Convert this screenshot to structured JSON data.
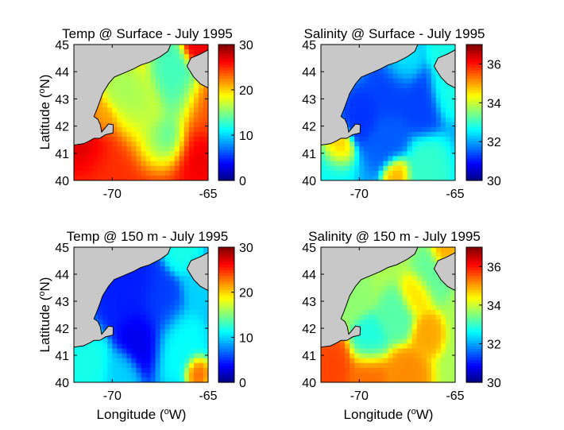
{
  "figure": {
    "x_axis_label": "Longitude",
    "x_axis_unit": "W",
    "y_axis_label": "Latitude",
    "y_axis_unit": "N",
    "degree_symbol": "o",
    "colors": {
      "land": "#c8c8c8",
      "coast": "#000000",
      "jet": [
        "#00008f",
        "#0000ff",
        "#00ffff",
        "#ffff00",
        "#ff0000",
        "#800000"
      ]
    }
  },
  "chart_data": [
    {
      "type": "heatmap",
      "title": "Temp @ Surface - July 1995",
      "variable": "temperature",
      "depth": "Surface",
      "xlim": [
        -72,
        -65
      ],
      "ylim": [
        40,
        45
      ],
      "xticks": [
        -70,
        -65
      ],
      "yticks": [
        40,
        41,
        42,
        43,
        44,
        45
      ],
      "colorbar": {
        "range": [
          0,
          30
        ],
        "ticks": [
          0,
          10,
          20,
          30
        ]
      },
      "base": 19,
      "features": [
        {
          "lon": -71.3,
          "lat": 41.2,
          "value": 28,
          "radius": 0.8
        },
        {
          "lon": -70.6,
          "lat": 40.6,
          "value": 25,
          "radius": 1.0
        },
        {
          "lon": -68.5,
          "lat": 40.3,
          "value": 25,
          "radius": 1.8
        },
        {
          "lon": -65.8,
          "lat": 40.9,
          "value": 27,
          "radius": 0.9
        },
        {
          "lon": -65.5,
          "lat": 42.5,
          "value": 24,
          "radius": 0.8
        },
        {
          "lon": -67.8,
          "lat": 41.3,
          "value": 12,
          "radius": 0.8
        },
        {
          "lon": -67.0,
          "lat": 41.5,
          "value": 11,
          "radius": 0.7
        },
        {
          "lon": -68.7,
          "lat": 42.4,
          "value": 15,
          "radius": 0.9
        },
        {
          "lon": -66.5,
          "lat": 43.0,
          "value": 13,
          "radius": 0.8
        },
        {
          "lon": -66.8,
          "lat": 44.0,
          "value": 13,
          "radius": 0.7
        },
        {
          "lon": -69.5,
          "lat": 43.3,
          "value": 16,
          "radius": 0.6
        },
        {
          "lon": -65.6,
          "lat": 44.9,
          "value": 27,
          "radius": 0.5
        },
        {
          "lon": -70.5,
          "lat": 42.2,
          "value": 21,
          "radius": 0.5
        }
      ]
    },
    {
      "type": "heatmap",
      "title": "Salinity @ Surface - July 1995",
      "variable": "salinity",
      "depth": "Surface",
      "xlim": [
        -72,
        -65
      ],
      "ylim": [
        40,
        45
      ],
      "xticks": [
        -70,
        -65
      ],
      "yticks": [
        40,
        41,
        42,
        43,
        44,
        45
      ],
      "colorbar": {
        "range": [
          30,
          37
        ],
        "ticks": [
          30,
          32,
          34,
          36
        ]
      },
      "base": 32.0,
      "features": [
        {
          "lon": -71.2,
          "lat": 41.1,
          "value": 35,
          "radius": 0.5
        },
        {
          "lon": -71.5,
          "lat": 40.4,
          "value": 32.7,
          "radius": 0.7
        },
        {
          "lon": -68.0,
          "lat": 40.2,
          "value": 35,
          "radius": 0.45
        },
        {
          "lon": -66.5,
          "lat": 40.3,
          "value": 33,
          "radius": 0.8
        },
        {
          "lon": -69.8,
          "lat": 42.4,
          "value": 31.2,
          "radius": 0.6
        },
        {
          "lon": -68.3,
          "lat": 43.3,
          "value": 31.3,
          "radius": 0.8
        },
        {
          "lon": -66.8,
          "lat": 42.8,
          "value": 31.3,
          "radius": 0.7
        },
        {
          "lon": -68.5,
          "lat": 41.5,
          "value": 31.5,
          "radius": 0.7
        },
        {
          "lon": -65.4,
          "lat": 43.3,
          "value": 32.8,
          "radius": 0.6
        },
        {
          "lon": -65.6,
          "lat": 44.8,
          "value": 32.8,
          "radius": 0.5
        },
        {
          "lon": -67.8,
          "lat": 44.3,
          "value": 32.5,
          "radius": 0.6
        }
      ]
    },
    {
      "type": "heatmap",
      "title": "Temp @ 150 m - July 1995",
      "variable": "temperature",
      "depth": "150 m",
      "xlim": [
        -72,
        -65
      ],
      "ylim": [
        40,
        45
      ],
      "xticks": [
        -70,
        -65
      ],
      "yticks": [
        40,
        41,
        42,
        43,
        44,
        45
      ],
      "colorbar": {
        "range": [
          0,
          30
        ],
        "ticks": [
          0,
          10,
          20,
          30
        ]
      },
      "base": 7,
      "features": [
        {
          "lon": -68.5,
          "lat": 41.6,
          "value": 3,
          "radius": 0.8
        },
        {
          "lon": -69.2,
          "lat": 43.3,
          "value": 4.5,
          "radius": 1.0
        },
        {
          "lon": -67.5,
          "lat": 42.8,
          "value": 5.5,
          "radius": 0.8
        },
        {
          "lon": -71.3,
          "lat": 40.7,
          "value": 12,
          "radius": 0.8
        },
        {
          "lon": -66.5,
          "lat": 41.4,
          "value": 11.5,
          "radius": 0.9
        },
        {
          "lon": -65.6,
          "lat": 40.4,
          "value": 24,
          "radius": 0.4
        },
        {
          "lon": -65.4,
          "lat": 43.5,
          "value": 10,
          "radius": 0.6
        },
        {
          "lon": -66.3,
          "lat": 44.9,
          "value": 12,
          "radius": 0.6
        },
        {
          "lon": -69.5,
          "lat": 40.3,
          "value": 10,
          "radius": 0.6
        }
      ]
    },
    {
      "type": "heatmap",
      "title": "Salinity @ 150 m - July 1995",
      "variable": "salinity",
      "depth": "150 m",
      "xlim": [
        -72,
        -65
      ],
      "ylim": [
        40,
        45
      ],
      "xticks": [
        -70,
        -65
      ],
      "yticks": [
        40,
        41,
        42,
        43,
        44,
        45
      ],
      "colorbar": {
        "range": [
          30,
          37
        ],
        "ticks": [
          30,
          32,
          34,
          36
        ]
      },
      "base": 33.8,
      "features": [
        {
          "lon": -71.5,
          "lat": 40.5,
          "value": 35.7,
          "radius": 0.8
        },
        {
          "lon": -69.5,
          "lat": 40.2,
          "value": 35.4,
          "radius": 0.7
        },
        {
          "lon": -67.5,
          "lat": 40.2,
          "value": 35.2,
          "radius": 0.7
        },
        {
          "lon": -69.5,
          "lat": 41.5,
          "value": 32.8,
          "radius": 0.6
        },
        {
          "lon": -68.0,
          "lat": 42.4,
          "value": 33.2,
          "radius": 0.6
        },
        {
          "lon": -66.5,
          "lat": 41.8,
          "value": 35,
          "radius": 0.5
        },
        {
          "lon": -67.0,
          "lat": 43.2,
          "value": 34.6,
          "radius": 0.5
        },
        {
          "lon": -65.6,
          "lat": 44.8,
          "value": 35,
          "radius": 0.4
        },
        {
          "lon": -66.2,
          "lat": 44.0,
          "value": 33.3,
          "radius": 0.6
        },
        {
          "lon": -70.4,
          "lat": 43.2,
          "value": 33.6,
          "radius": 0.6
        }
      ]
    }
  ]
}
